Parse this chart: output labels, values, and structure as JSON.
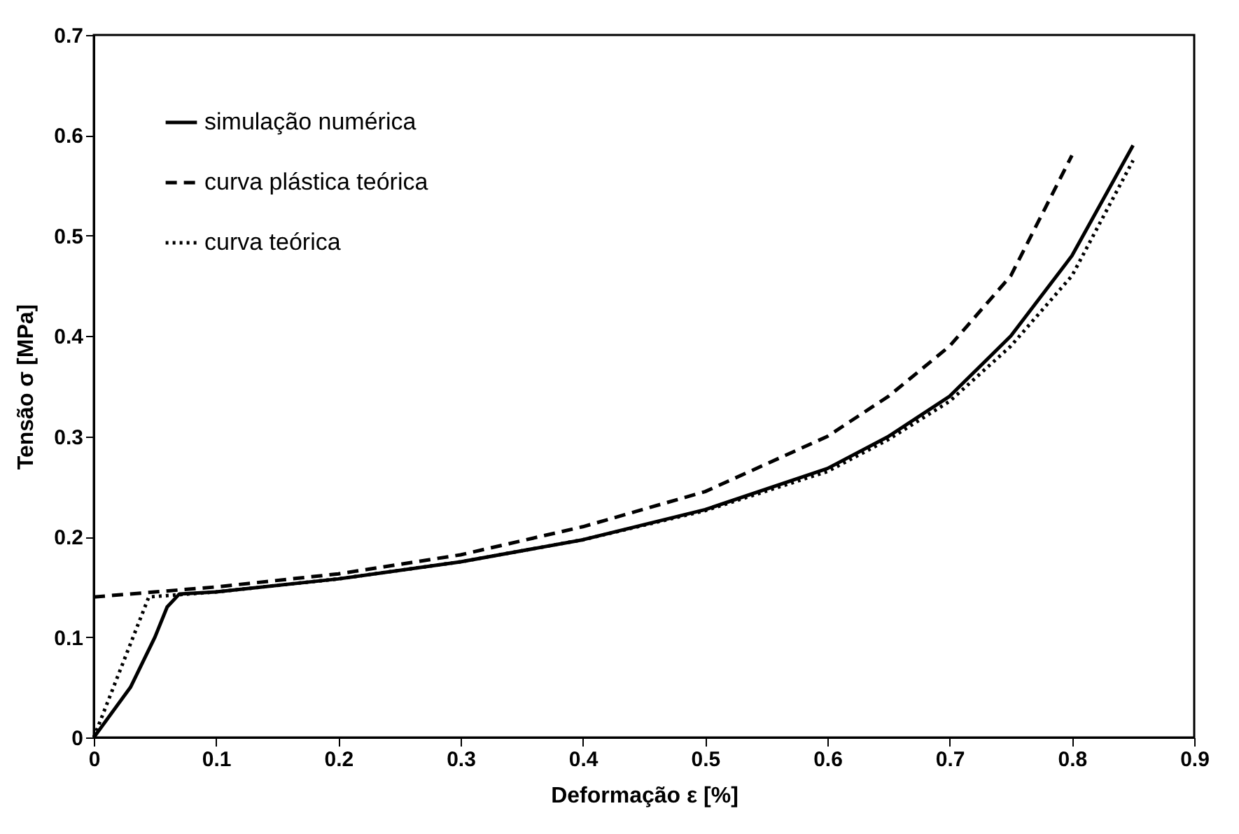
{
  "chart_data": {
    "type": "line",
    "xlabel": "Deformação ε [%]",
    "ylabel": "Tensão σ [MPa]",
    "xlim": [
      0,
      0.9
    ],
    "ylim": [
      0,
      0.7
    ],
    "xticks": [
      0,
      0.1,
      0.2,
      0.3,
      0.4,
      0.5,
      0.6,
      0.7,
      0.8,
      0.9
    ],
    "yticks": [
      0,
      0.1,
      0.2,
      0.3,
      0.4,
      0.5,
      0.6,
      0.7
    ],
    "grid": false,
    "legend": "top left",
    "marker": "none",
    "series": [
      {
        "name": "simulação numérica",
        "color": "#000000",
        "line_style": "solid",
        "x": [
          0,
          0.03,
          0.05,
          0.06,
          0.07,
          0.1,
          0.2,
          0.3,
          0.4,
          0.5,
          0.6,
          0.65,
          0.7,
          0.75,
          0.8,
          0.85
        ],
        "values": [
          0,
          0.05,
          0.1,
          0.13,
          0.143,
          0.145,
          0.158,
          0.175,
          0.197,
          0.227,
          0.268,
          0.3,
          0.34,
          0.4,
          0.48,
          0.59
        ]
      },
      {
        "name": "curva plástica teórica",
        "color": "#000000",
        "line_style": "dashed",
        "x": [
          0,
          0.1,
          0.2,
          0.3,
          0.4,
          0.5,
          0.6,
          0.65,
          0.7,
          0.75,
          0.8
        ],
        "values": [
          0.14,
          0.15,
          0.163,
          0.182,
          0.21,
          0.245,
          0.3,
          0.34,
          0.39,
          0.46,
          0.58
        ]
      },
      {
        "name": "curva teórica",
        "color": "#000000",
        "line_style": "dotted",
        "x": [
          0,
          0.045,
          0.1,
          0.2,
          0.3,
          0.4,
          0.5,
          0.6,
          0.65,
          0.7,
          0.75,
          0.8,
          0.85
        ],
        "values": [
          0,
          0.14,
          0.145,
          0.158,
          0.175,
          0.197,
          0.226,
          0.265,
          0.297,
          0.335,
          0.39,
          0.46,
          0.575
        ]
      }
    ]
  }
}
